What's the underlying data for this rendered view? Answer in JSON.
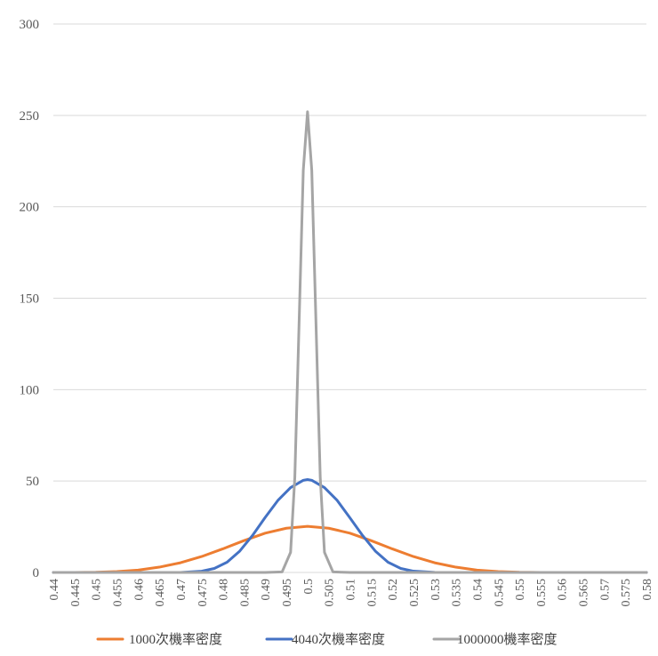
{
  "chart_data": {
    "type": "line",
    "title": "",
    "xlabel": "",
    "ylabel": "",
    "ylim": [
      0,
      300
    ],
    "yticks": [
      "0",
      "50",
      "100",
      "150",
      "200",
      "250",
      "300"
    ],
    "xlim": [
      0.44,
      0.58
    ],
    "xticks": [
      "0.44",
      "0.445",
      "0.45",
      "0.455",
      "0.46",
      "0.465",
      "0.47",
      "0.475",
      "0.48",
      "0.485",
      "0.49",
      "0.495",
      "0.5",
      "0.505",
      "0.51",
      "0.515",
      "0.52",
      "0.525",
      "0.53",
      "0.535",
      "0.54",
      "0.545",
      "0.55",
      "0.555",
      "0.56",
      "0.565",
      "0.57",
      "0.575",
      "0.58"
    ],
    "grid": "horizontal",
    "legend": "bottom",
    "series": [
      {
        "name": "1000次機率密度",
        "color": "#ed7d31",
        "x": [
          0.44,
          0.445,
          0.45,
          0.455,
          0.46,
          0.465,
          0.47,
          0.475,
          0.48,
          0.485,
          0.49,
          0.495,
          0.5,
          0.505,
          0.51,
          0.515,
          0.52,
          0.525,
          0.53,
          0.535,
          0.54,
          0.545,
          0.55,
          0.555,
          0.56,
          0.565,
          0.57,
          0.575,
          0.58
        ],
        "y": [
          0,
          0,
          0.1,
          0.5,
          1.3,
          2.9,
          5.3,
          8.7,
          12.9,
          17.4,
          21.5,
          24.2,
          25.2,
          24.2,
          21.5,
          17.4,
          12.9,
          8.7,
          5.3,
          2.9,
          1.3,
          0.5,
          0.1,
          0,
          0,
          0,
          0,
          0,
          0
        ]
      },
      {
        "name": "4040次機率密度",
        "color": "#4472c4",
        "x": [
          0.44,
          0.445,
          0.45,
          0.455,
          0.46,
          0.465,
          0.47,
          0.475,
          0.478,
          0.481,
          0.484,
          0.487,
          0.49,
          0.493,
          0.496,
          0.499,
          0.5,
          0.501,
          0.504,
          0.507,
          0.51,
          0.513,
          0.516,
          0.519,
          0.522,
          0.525,
          0.53,
          0.535,
          0.54,
          0.545,
          0.55,
          0.555,
          0.56,
          0.565,
          0.57,
          0.575,
          0.58
        ],
        "y": [
          0,
          0,
          0,
          0,
          0,
          0,
          0,
          0.7,
          2.2,
          5.6,
          11.7,
          20.2,
          30.1,
          39.4,
          46.4,
          50.4,
          50.8,
          50.4,
          46.4,
          39.4,
          29.9,
          20.2,
          11.7,
          5.6,
          2.2,
          0.7,
          0.05,
          0,
          0,
          0,
          0,
          0,
          0,
          0,
          0,
          0,
          0
        ]
      },
      {
        "name": "1000000機率密度",
        "color": "#a5a5a5",
        "x": [
          0.44,
          0.45,
          0.46,
          0.47,
          0.48,
          0.49,
          0.494,
          0.496,
          0.497,
          0.498,
          0.499,
          0.5,
          0.501,
          0.502,
          0.503,
          0.504,
          0.506,
          0.51,
          0.52,
          0.53,
          0.54,
          0.55,
          0.56,
          0.57,
          0.58
        ],
        "y": [
          0,
          0,
          0,
          0,
          0,
          0,
          0.3,
          11,
          52,
          136,
          220,
          252,
          220,
          136,
          52,
          11,
          0.3,
          0,
          0,
          0,
          0,
          0,
          0,
          0,
          0
        ]
      }
    ]
  }
}
